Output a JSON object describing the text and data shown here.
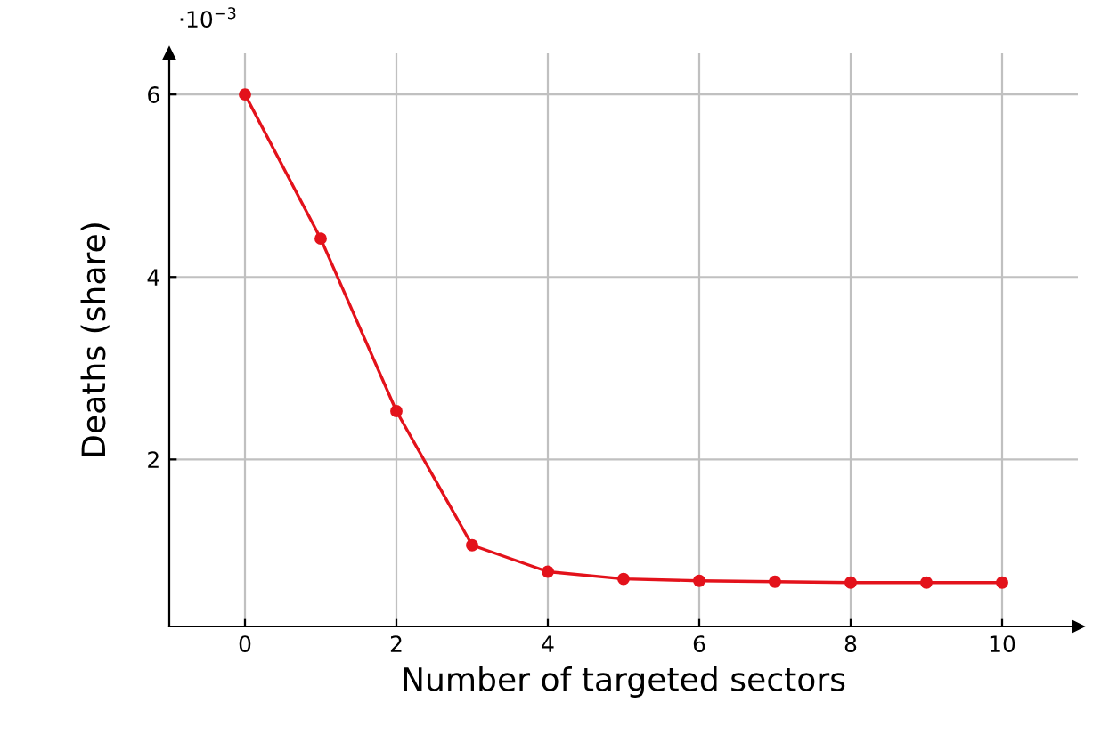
{
  "chart_data": {
    "type": "line",
    "xlabel": "Number of targeted sectors",
    "ylabel": "Deaths (share)",
    "annotations": [
      "·10$^{−3}$"
    ],
    "x": [
      0,
      1,
      2,
      3,
      4,
      5,
      6,
      7,
      8,
      9,
      10
    ],
    "series": [
      {
        "color": "#e3121b",
        "values": [
          6.0,
          4.42,
          2.53,
          1.06,
          0.77,
          0.69,
          0.67,
          0.66,
          0.65,
          0.65,
          0.65
        ]
      }
    ],
    "xlim": [
      -1,
      11
    ],
    "xticks": [
      0,
      2,
      4,
      6,
      8,
      10
    ],
    "ylim": [
      0.17,
      6.45
    ],
    "yticks": [
      2,
      4,
      6
    ],
    "grid": true,
    "marker": "circle",
    "line_style": "solid"
  }
}
